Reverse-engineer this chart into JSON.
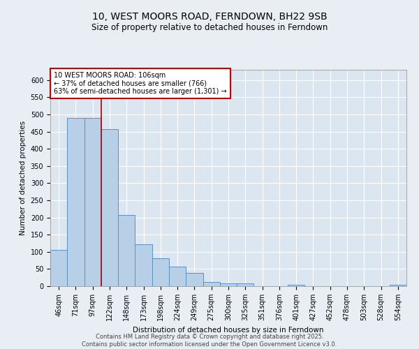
{
  "title_line1": "10, WEST MOORS ROAD, FERNDOWN, BH22 9SB",
  "title_line2": "Size of property relative to detached houses in Ferndown",
  "xlabel": "Distribution of detached houses by size in Ferndown",
  "ylabel": "Number of detached properties",
  "categories": [
    "46sqm",
    "71sqm",
    "97sqm",
    "122sqm",
    "148sqm",
    "173sqm",
    "198sqm",
    "224sqm",
    "249sqm",
    "275sqm",
    "300sqm",
    "325sqm",
    "351sqm",
    "376sqm",
    "401sqm",
    "427sqm",
    "452sqm",
    "478sqm",
    "503sqm",
    "528sqm",
    "554sqm"
  ],
  "values": [
    105,
    490,
    490,
    458,
    207,
    122,
    82,
    57,
    38,
    13,
    8,
    8,
    0,
    0,
    5,
    0,
    0,
    0,
    0,
    0,
    5
  ],
  "bar_color": "#b8cfe8",
  "bar_edge_color": "#5b8fc4",
  "property_label": "10 WEST MOORS ROAD: 106sqm",
  "annotation_line1": "← 37% of detached houses are smaller (766)",
  "annotation_line2": "63% of semi-detached houses are larger (1,301) →",
  "vline_color": "#aa0000",
  "vline_x": 2.5,
  "annotation_box_color": "#cc0000",
  "background_color": "#e8eef4",
  "plot_background_color": "#dce6f0",
  "grid_color": "#c8d4e4",
  "ylim": [
    0,
    630
  ],
  "yticks": [
    0,
    50,
    100,
    150,
    200,
    250,
    300,
    350,
    400,
    450,
    500,
    550,
    600
  ],
  "footer_line1": "Contains HM Land Registry data © Crown copyright and database right 2025.",
  "footer_line2": "Contains public sector information licensed under the Open Government Licence v3.0.",
  "title_fontsize": 10,
  "subtitle_fontsize": 8.5,
  "axis_label_fontsize": 7.5,
  "tick_fontsize": 7,
  "annotation_fontsize": 7,
  "footer_fontsize": 6
}
